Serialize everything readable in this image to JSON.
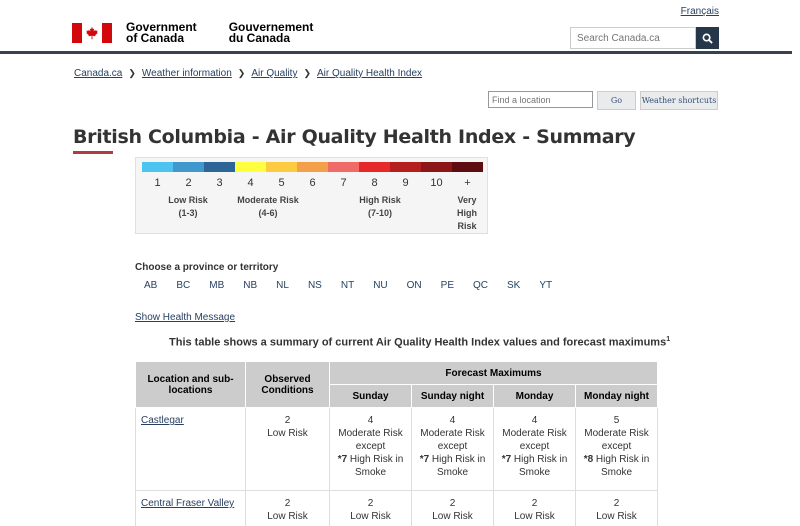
{
  "header": {
    "language_link": "Français",
    "gov_en": [
      "Government",
      "of Canada"
    ],
    "gov_fr": [
      "Gouvernement",
      "du Canada"
    ],
    "search_placeholder": "Search Canada.ca",
    "flag_color": "#d3080c"
  },
  "breadcrumb": [
    "Canada.ca",
    "Weather information",
    "Air Quality",
    "Air Quality Health Index"
  ],
  "location_tools": {
    "input_placeholder": "Find a location",
    "go_label": "Go",
    "shortcuts_label": "Weather shortcuts"
  },
  "page_title": "British Columbia - Air Quality Health Index - Summary",
  "scale": {
    "colors": [
      "#4dc3f0",
      "#4098cc",
      "#2c6596",
      "#ffff40",
      "#fdcb3f",
      "#f4a04a",
      "#f06b68",
      "#e6282b",
      "#b51e1f",
      "#8b1517",
      "#5e0c0f"
    ],
    "numbers": [
      "1",
      "2",
      "3",
      "4",
      "5",
      "6",
      "7",
      "8",
      "9",
      "10",
      "+"
    ],
    "low_label": [
      "Low Risk",
      "(1-3)"
    ],
    "moderate_label": [
      "Moderate Risk",
      "(4-6)"
    ],
    "high_label": [
      "High Risk",
      "(7-10)"
    ],
    "very_high_label": [
      "Very",
      "High",
      "Risk"
    ]
  },
  "province_heading": "Choose a province or territory",
  "provinces": [
    "AB",
    "BC",
    "MB",
    "NB",
    "NL",
    "NS",
    "NT",
    "NU",
    "ON",
    "PE",
    "QC",
    "SK",
    "YT"
  ],
  "health_message_link": "Show Health Message",
  "caption": "This table shows a summary of current Air Quality Health Index values and forecast maximums",
  "caption_sup": "1",
  "table": {
    "headers": {
      "location": [
        "Location and sub-",
        "locations"
      ],
      "observed": [
        "Observed",
        "Conditions"
      ],
      "forecast": "Forecast Maximums",
      "days": [
        "Sunday",
        "Sunday night",
        "Monday",
        "Monday night"
      ]
    },
    "rows": [
      {
        "location": "Castlegar",
        "observed": [
          "2",
          "Low Risk"
        ],
        "forecasts": [
          [
            "4",
            "Moderate Risk",
            "except",
            "*7 High Risk in",
            "Smoke"
          ],
          [
            "4",
            "Moderate Risk",
            "except",
            "*7 High Risk in",
            "Smoke"
          ],
          [
            "4",
            "Moderate Risk",
            "except",
            "*7 High Risk in",
            "Smoke"
          ],
          [
            "5",
            "Moderate Risk",
            "except",
            "*8 High Risk in",
            "Smoke"
          ]
        ]
      },
      {
        "location": "Central Fraser Valley",
        "observed": [
          "2",
          "Low Risk"
        ],
        "forecasts": [
          [
            "2",
            "Low Risk"
          ],
          [
            "2",
            "Low Risk"
          ],
          [
            "2",
            "Low Risk"
          ],
          [
            "2",
            "Low Risk"
          ]
        ]
      }
    ]
  }
}
